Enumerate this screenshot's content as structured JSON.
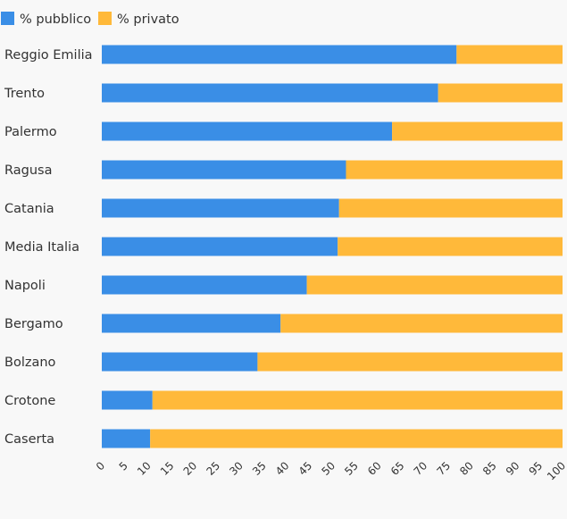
{
  "chart_data": {
    "type": "bar",
    "orientation": "horizontal",
    "stacked": true,
    "categories": [
      "Reggio Emilia",
      "Trento",
      "Palermo",
      "Ragusa",
      "Catania",
      "Media Italia",
      "Napoli",
      "Bergamo",
      "Bolzano",
      "Crotone",
      "Caserta"
    ],
    "series": [
      {
        "name": "% pubblico",
        "color": "#3a8ee6",
        "values": [
          77,
          73,
          63,
          53,
          51.5,
          51.2,
          44.5,
          38.8,
          33.8,
          11,
          10.5
        ]
      },
      {
        "name": "% privato",
        "color": "#ffb93a",
        "values": [
          23,
          27,
          37,
          47,
          48.5,
          48.8,
          55.5,
          61.2,
          66.2,
          89,
          89.5
        ]
      }
    ],
    "xticks": [
      "0",
      "5",
      "10",
      "15",
      "20",
      "25",
      "30",
      "35",
      "40",
      "45",
      "50",
      "55",
      "60",
      "65",
      "70",
      "75",
      "80",
      "85",
      "90",
      "95",
      "100"
    ],
    "xlim": [
      0,
      100
    ],
    "grid": false,
    "legend_position": "top-left"
  }
}
